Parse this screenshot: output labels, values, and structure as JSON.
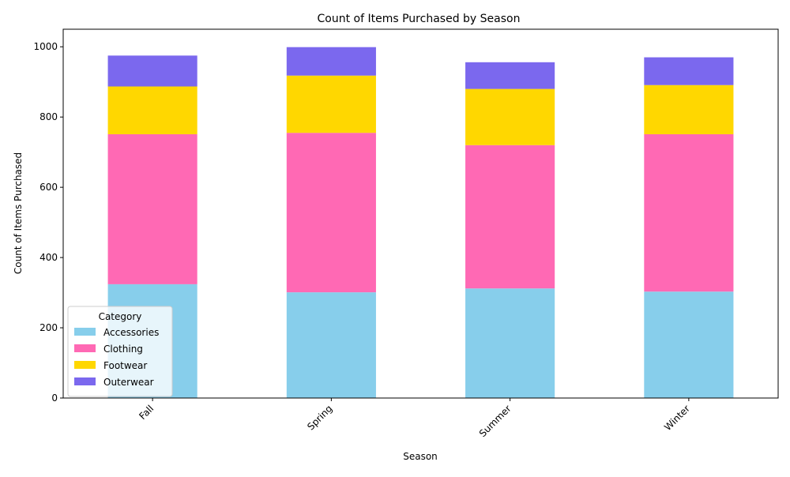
{
  "chart_data": {
    "type": "bar",
    "stacked": true,
    "title": "Count of Items Purchased by Season",
    "xlabel": "Season",
    "ylabel": "Count of Items Purchased",
    "categories": [
      "Fall",
      "Spring",
      "Summer",
      "Winter"
    ],
    "series": [
      {
        "name": "Accessories",
        "color": "#87CEEB",
        "values": [
          324,
          301,
          312,
          303
        ]
      },
      {
        "name": "Clothing",
        "color": "#FF69B4",
        "values": [
          427,
          454,
          408,
          448
        ]
      },
      {
        "name": "Footwear",
        "color": "#FFD700",
        "values": [
          136,
          163,
          160,
          140
        ]
      },
      {
        "name": "Outerwear",
        "color": "#7B68EE",
        "values": [
          88,
          81,
          76,
          79
        ]
      }
    ],
    "ylim": [
      0,
      1050
    ],
    "yticks": [
      0,
      200,
      400,
      600,
      800,
      1000
    ],
    "grid": false,
    "legend": {
      "title": "Category",
      "placement": "lower-left"
    },
    "xtick_rotation": 45
  }
}
